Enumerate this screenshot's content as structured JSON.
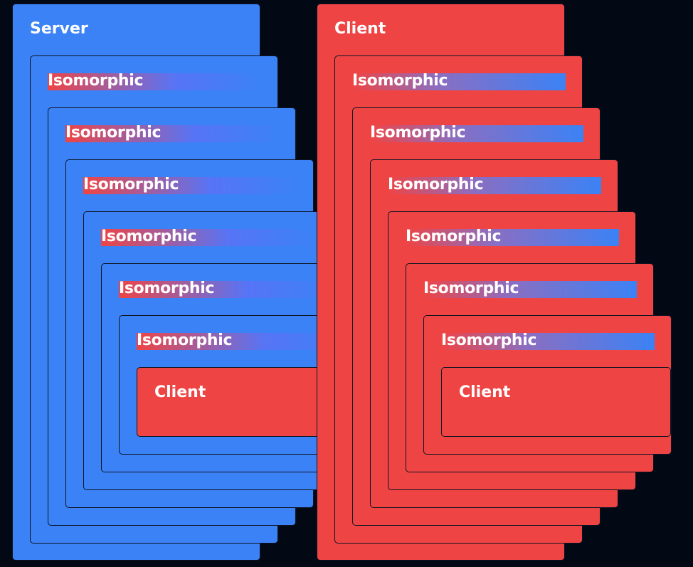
{
  "columns": {
    "server": {
      "label": "Server",
      "isomorphic_label": "Isomorphic",
      "nested_client_label": "Client"
    },
    "client": {
      "label": "Client",
      "isomorphic_label": "Isomorphic",
      "nested_client_label": "Client"
    }
  },
  "isomorphic_levels": 6,
  "colors": {
    "background": "#030815",
    "server": "#3b82f6",
    "client": "#ef4444",
    "border": "#0d1322",
    "text": "#ffffff"
  }
}
